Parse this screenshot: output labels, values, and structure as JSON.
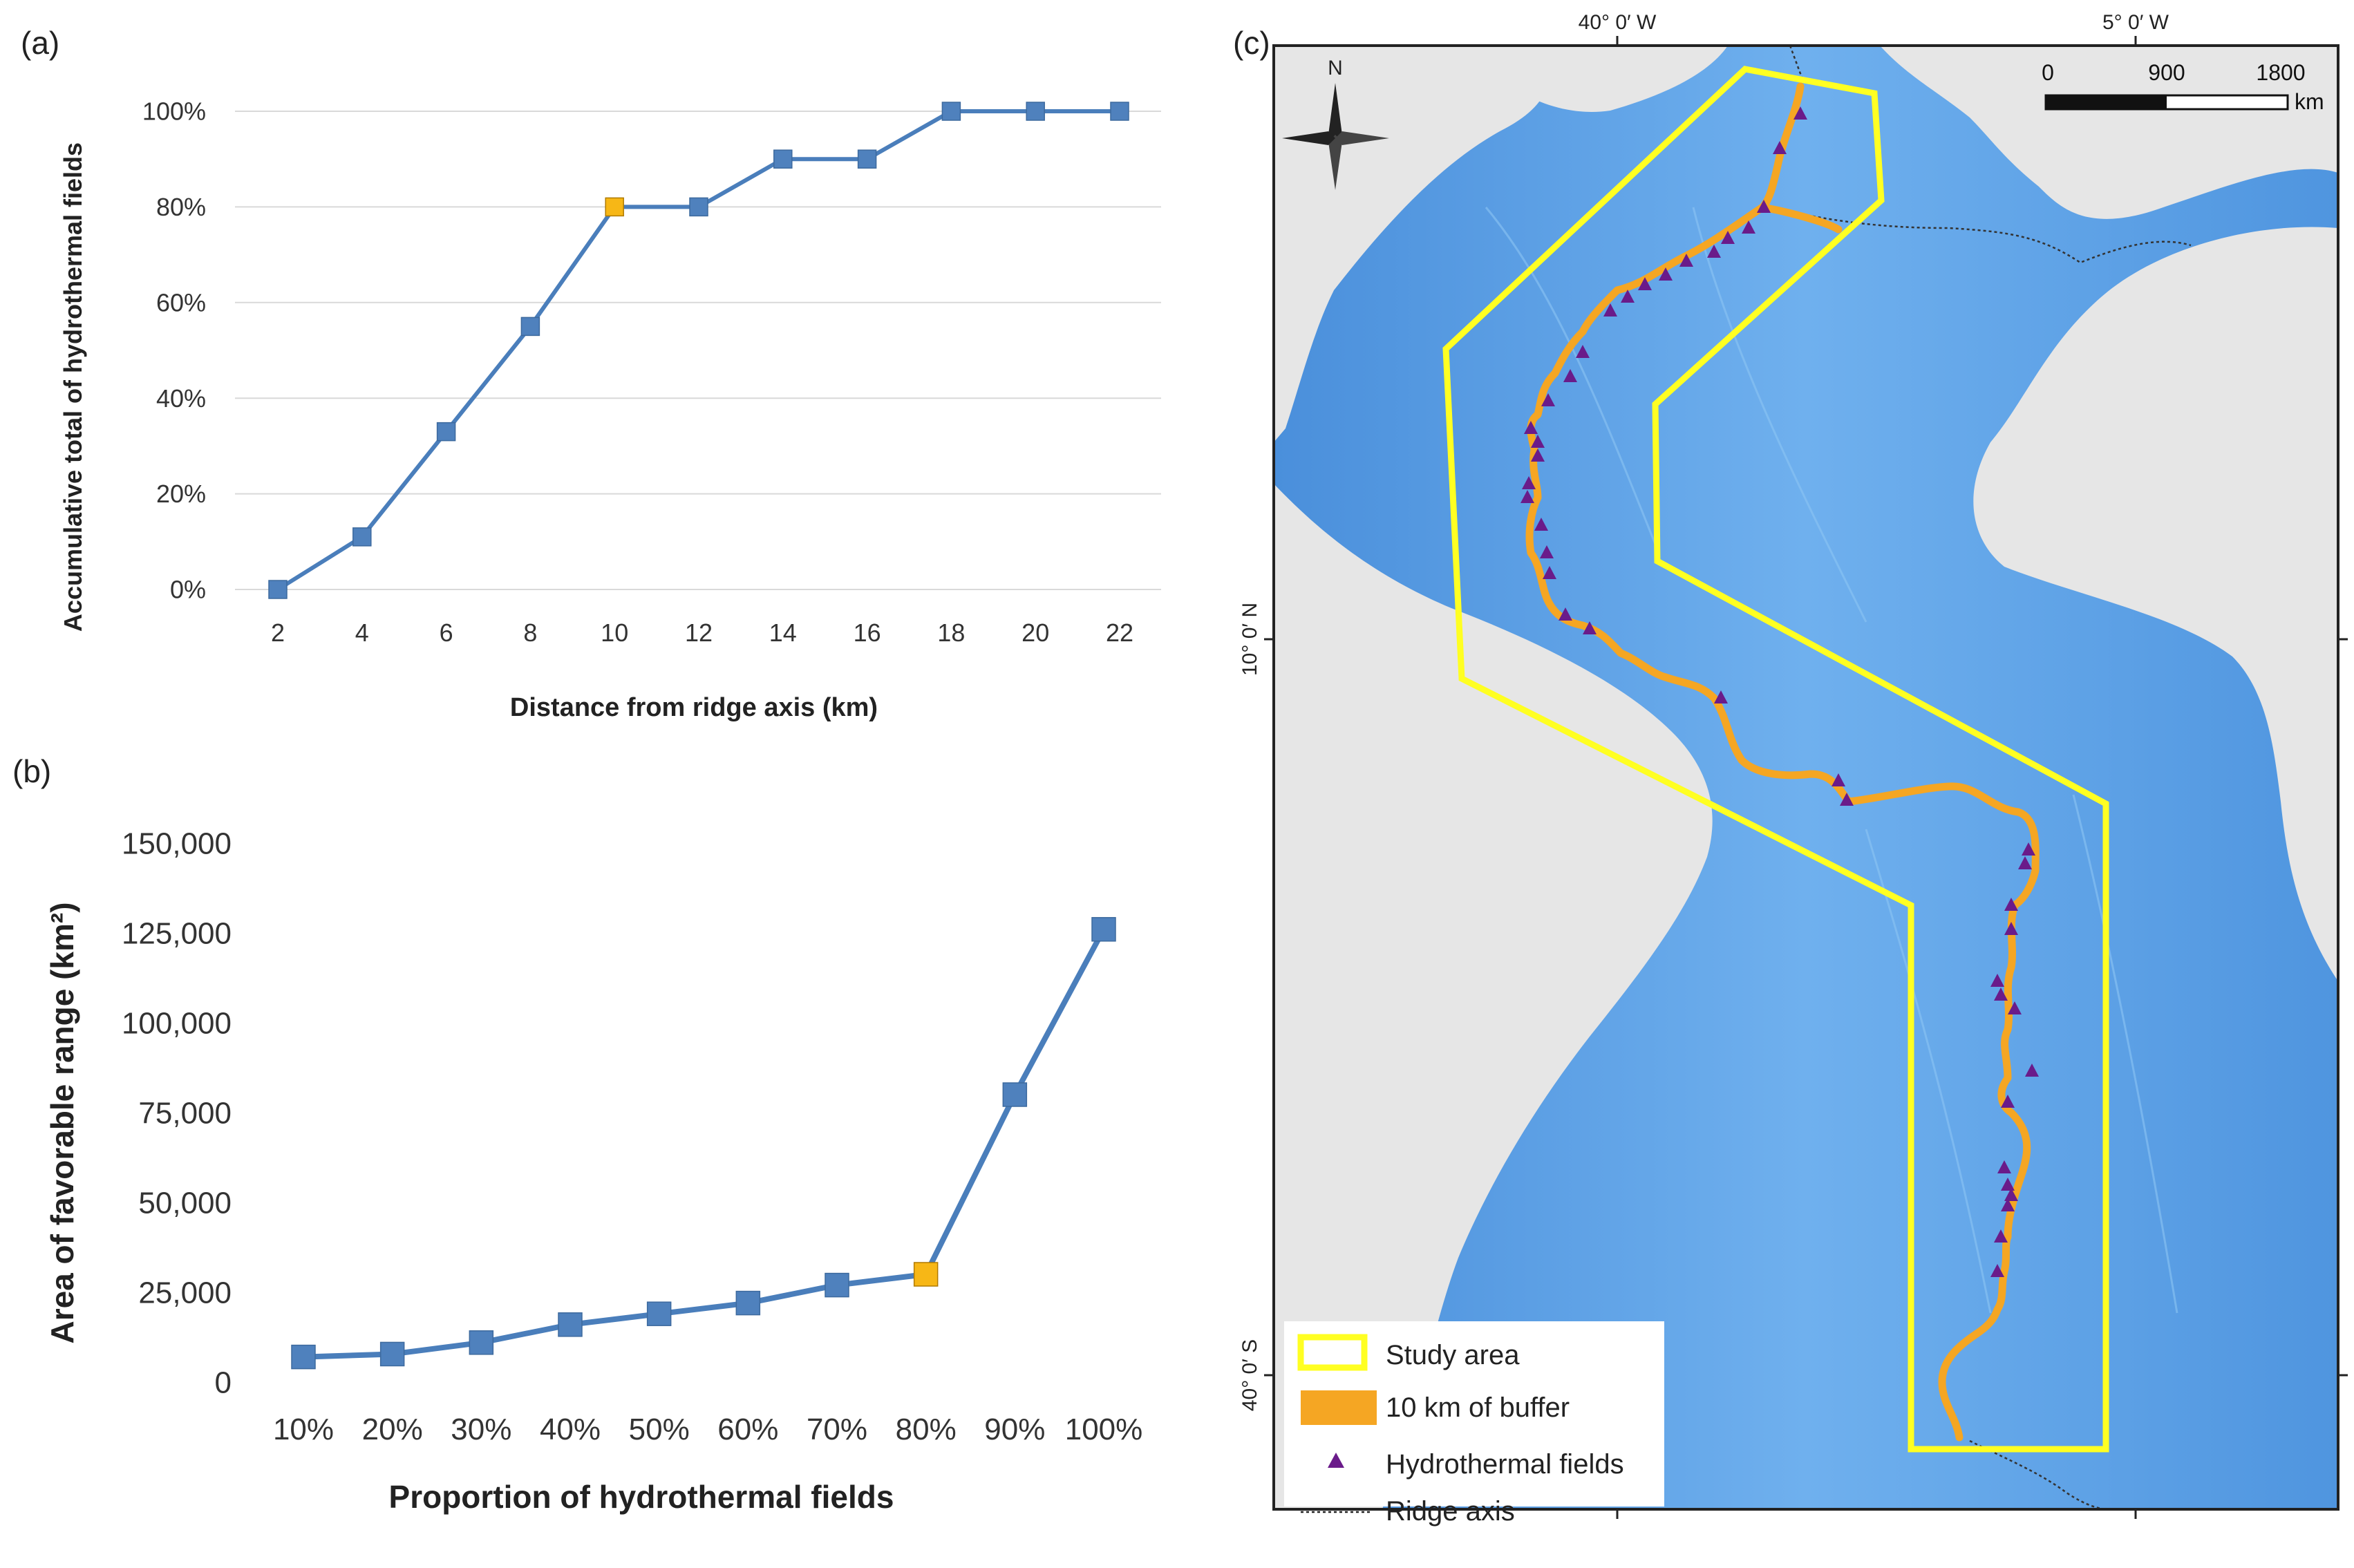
{
  "panels": {
    "a_label": "(a)",
    "b_label": "(b)",
    "c_label": "(c)"
  },
  "chart_data": [
    {
      "id": "a",
      "type": "line",
      "title": "",
      "xlabel": "Distance from ridge axis (km)",
      "ylabel": "Accumulative total of hydrothermal fields",
      "categories": [
        "2",
        "4",
        "6",
        "8",
        "10",
        "12",
        "14",
        "16",
        "18",
        "20",
        "22"
      ],
      "values": [
        0,
        11,
        33,
        55,
        80,
        80,
        90,
        90,
        100,
        100,
        100
      ],
      "highlight_index": 4,
      "y_ticks": [
        0,
        20,
        40,
        60,
        80,
        100
      ],
      "y_tick_labels": [
        "0%",
        "20%",
        "40%",
        "60%",
        "80%",
        "100%"
      ],
      "ylim": [
        0,
        100
      ],
      "grid": true,
      "series_color": "#4a7ebb",
      "marker_color": "#4f81bd",
      "highlight_color": "#f7b716"
    },
    {
      "id": "b",
      "type": "line",
      "title": "",
      "xlabel": "Proportion of hydrothermal fields",
      "ylabel": "Area of favorable range (km²)",
      "categories": [
        "10%",
        "20%",
        "30%",
        "40%",
        "50%",
        "60%",
        "70%",
        "80%",
        "90%",
        "100%"
      ],
      "values": [
        7000,
        7800,
        11000,
        16000,
        19000,
        22000,
        27000,
        30000,
        80000,
        126000
      ],
      "highlight_index": 7,
      "y_ticks": [
        0,
        25000,
        50000,
        75000,
        100000,
        125000,
        150000
      ],
      "y_tick_labels": [
        "0",
        "25,000",
        "50,000",
        "75,000",
        "100,000",
        "125,000",
        "150,000"
      ],
      "ylim": [
        0,
        150000
      ],
      "grid": false,
      "series_color": "#4a7ebb",
      "marker_color": "#4f81bd",
      "highlight_color": "#f7b716"
    }
  ],
  "map": {
    "lon_labels": [
      "40° 0′ W",
      "5° 0′ W"
    ],
    "lat_labels": [
      "10° 0′ N",
      "40° 0′ S"
    ],
    "north": "N",
    "scale_labels": [
      "0",
      "900",
      "1800"
    ],
    "scale_unit": "km",
    "legend": {
      "study_area": "Study area",
      "buffer": "10 km of buffer",
      "hydrothermal": "Hydrothermal fields",
      "ridge": "Ridge axis"
    },
    "colors": {
      "ocean": "#5b9fe2",
      "land": "#e4e4e4",
      "study_area": "#ffff22",
      "buffer": "#f5a623",
      "hydrothermal": "#6a1b8a"
    }
  }
}
